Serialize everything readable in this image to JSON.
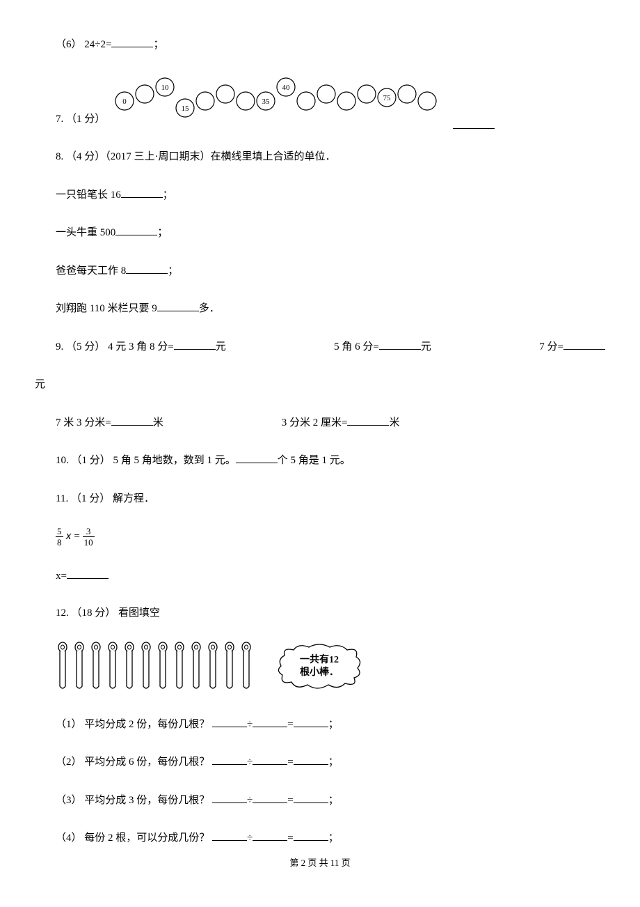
{
  "q6": {
    "label": "（6） 24÷2=",
    "tail": "；"
  },
  "q7": {
    "label": "7. （1 分）",
    "circles": {
      "values": [
        "0",
        "",
        "10",
        "15",
        "",
        "",
        "",
        "35",
        "40",
        "",
        "",
        "",
        "",
        "75",
        "",
        ""
      ],
      "stroke": "#000000",
      "fill": "#ffffff"
    }
  },
  "q8": {
    "head": "8. （4 分）（2017 三上·周口期末）在横线里填上合适的单位．",
    "l1a": "一只铅笔长 16",
    "l1b": "；",
    "l2a": "一头牛重 500",
    "l2b": "；",
    "l3a": "爸爸每天工作 8",
    "l3b": "；",
    "l4a": "刘翔跑 110 米栏只要 9",
    "l4b": "多．"
  },
  "q9": {
    "head": "9. （5 分） 4 元 3 角 8 分=",
    "headtail": "元",
    "p2a": "5 角 6 分=",
    "p2b": "元",
    "p3a": "7 分=",
    "p3b": "",
    "yuan": "元",
    "l2p1a": "7 米 3 分米=",
    "l2p1b": "米",
    "l2p2a": "3 分米 2 厘米=",
    "l2p2b": "米"
  },
  "q10": {
    "a": "10. （1 分） 5 角 5 角地数，数到 1 元。",
    "b": "个 5 角是 1 元。"
  },
  "q11": {
    "head": "11. （1 分） 解方程．",
    "frac1_num": "5",
    "frac1_den": "8",
    "mid": " 𝑥 = ",
    "frac2_num": "3",
    "frac2_den": "10",
    "ans": "x="
  },
  "q12": {
    "head": "12. （18 分） 看图填空",
    "stick_count": 12,
    "bubble_l1": "一共有12",
    "bubble_l2": "根小棒．",
    "s1": "（1） 平均分成 2 份，每份几根？",
    "s2": "（2） 平均分成 6 份，每份几根？",
    "s3": "（3） 平均分成 3 份，每份几根？",
    "s4": "（4） 每份 2 根，可以分成几份？",
    "div": "÷",
    "eq": "=",
    "tail": "；"
  },
  "footer": "第 2 页 共 11 页"
}
